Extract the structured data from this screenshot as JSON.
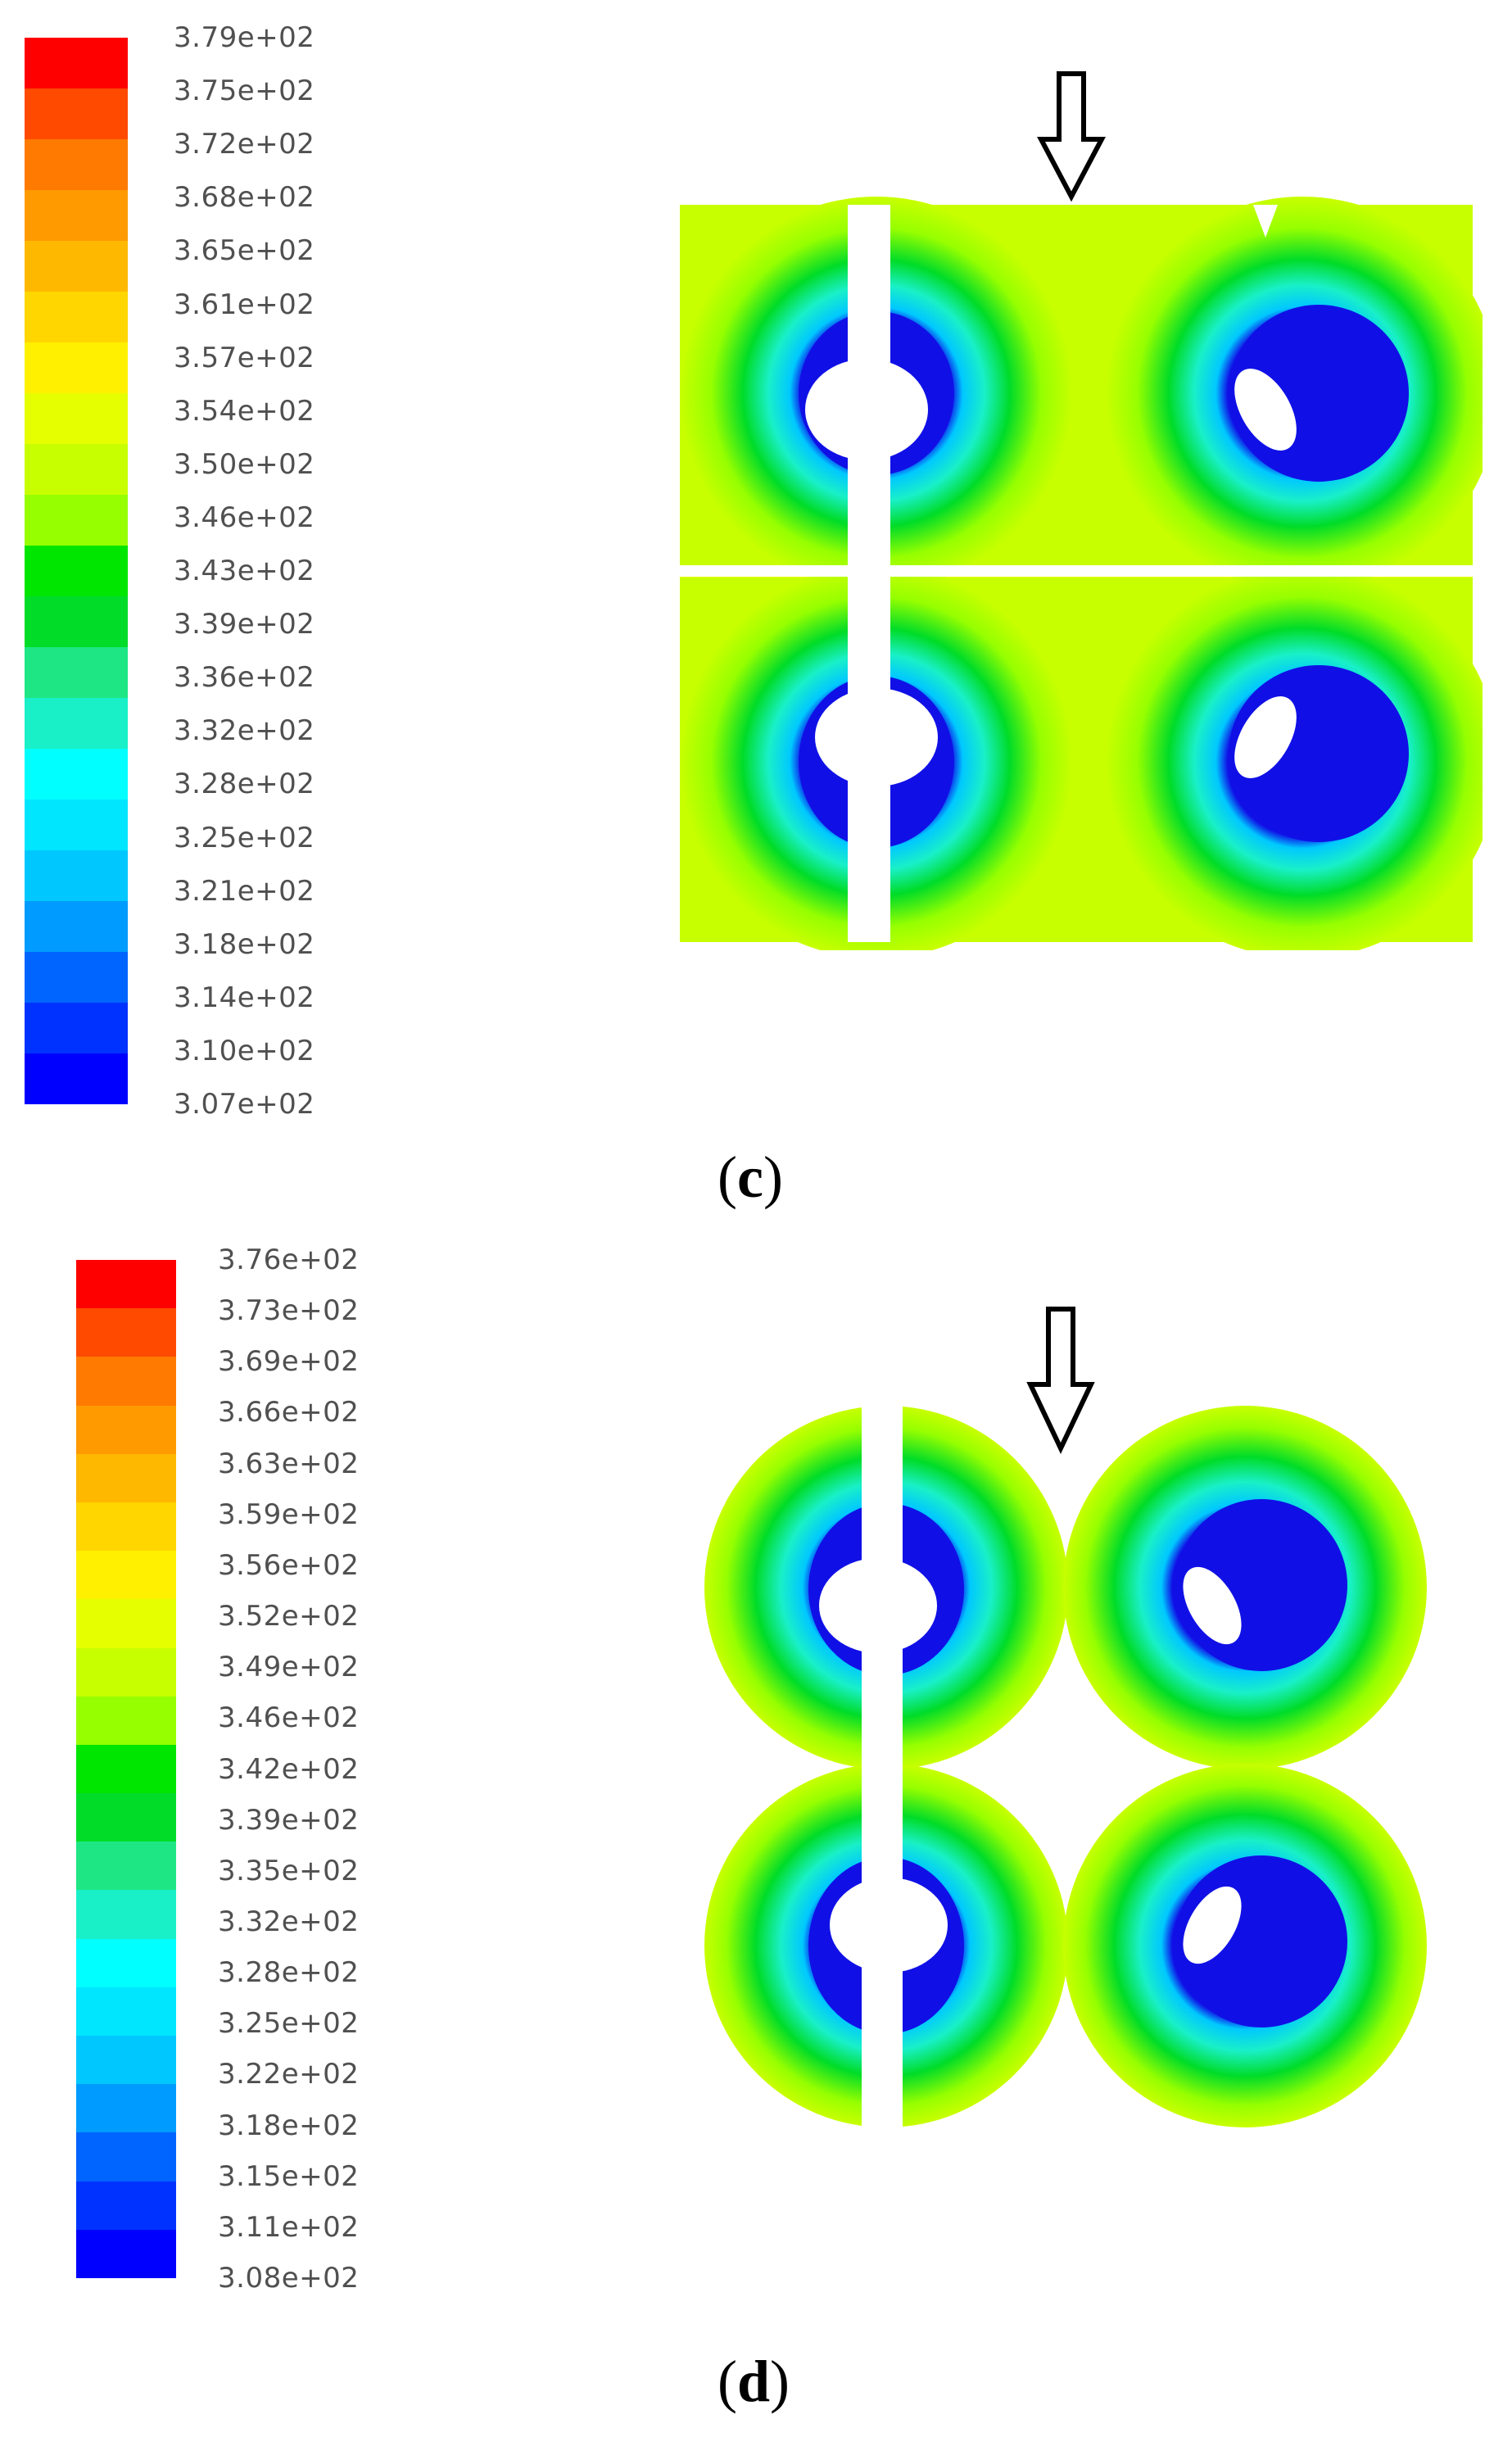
{
  "panels": [
    {
      "label_open": "(",
      "label_letter": "c",
      "label_close": ")",
      "ticks": [
        "3.79e+02",
        "3.75e+02",
        "3.72e+02",
        "3.68e+02",
        "3.65e+02",
        "3.61e+02",
        "3.57e+02",
        "3.54e+02",
        "3.50e+02",
        "3.46e+02",
        "3.43e+02",
        "3.39e+02",
        "3.36e+02",
        "3.32e+02",
        "3.28e+02",
        "3.25e+02",
        "3.21e+02",
        "3.18e+02",
        "3.14e+02",
        "3.10e+02",
        "3.07e+02"
      ]
    },
    {
      "label_open": "(",
      "label_letter": "d",
      "label_close": ")",
      "ticks": [
        "3.76e+02",
        "3.73e+02",
        "3.69e+02",
        "3.66e+02",
        "3.63e+02",
        "3.59e+02",
        "3.56e+02",
        "3.52e+02",
        "3.49e+02",
        "3.46e+02",
        "3.42e+02",
        "3.39e+02",
        "3.35e+02",
        "3.32e+02",
        "3.28e+02",
        "3.25e+02",
        "3.22e+02",
        "3.18e+02",
        "3.15e+02",
        "3.11e+02",
        "3.08e+02"
      ]
    }
  ],
  "colors": {
    "scale": [
      "#ff0000",
      "#ff4a00",
      "#ff7a00",
      "#ff9a00",
      "#ffb800",
      "#ffd600",
      "#fff000",
      "#e6ff00",
      "#c8ff00",
      "#96ff00",
      "#00e600",
      "#00dc28",
      "#1ee684",
      "#19f0c8",
      "#00ffff",
      "#00e6ff",
      "#00c8ff",
      "#009bff",
      "#0064ff",
      "#0032ff",
      "#0000ff"
    ],
    "hole": "#1010e6"
  }
}
